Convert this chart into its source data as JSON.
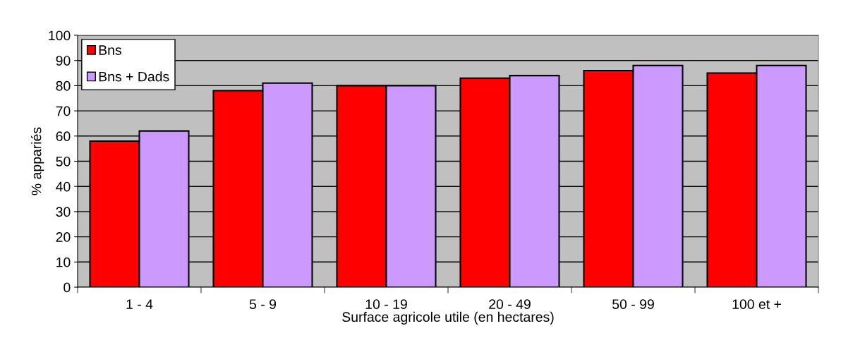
{
  "chart_data": {
    "type": "bar",
    "xlabel": "Surface agricole utile (en hectares)",
    "ylabel": "% appariés",
    "categories": [
      "1 - 4",
      "5 - 9",
      "10 - 19",
      "20 - 49",
      "50 - 99",
      "100 et +"
    ],
    "series": [
      {
        "name": "Bns",
        "color": "#ff0000",
        "values": [
          58,
          78,
          80,
          83,
          86,
          85
        ]
      },
      {
        "name": "Bns + Dads",
        "color": "#cc99ff",
        "values": [
          62,
          81,
          80,
          84,
          88,
          88
        ]
      }
    ],
    "ylim": [
      0,
      100
    ],
    "yticks": [
      0,
      10,
      20,
      30,
      40,
      50,
      60,
      70,
      80,
      90,
      100
    ],
    "grid": "y",
    "legend": "top left"
  }
}
